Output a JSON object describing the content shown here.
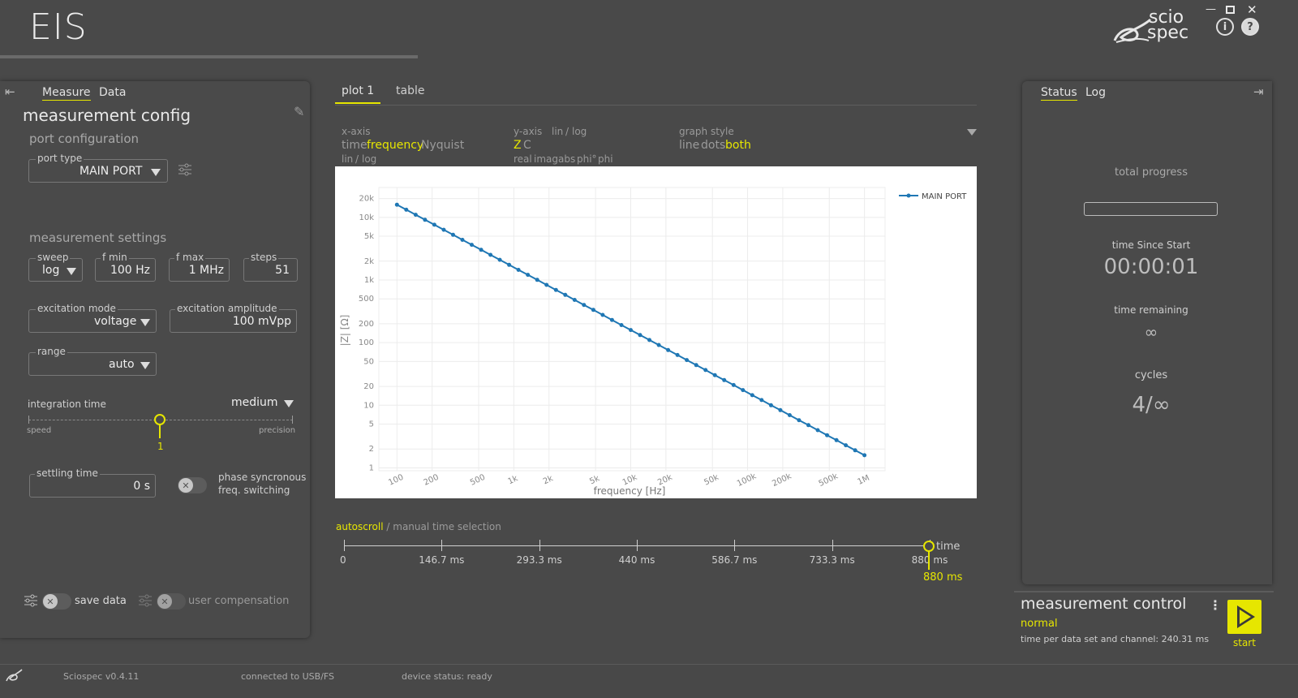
{
  "app": {
    "title": "EIS"
  },
  "left": {
    "tabs": [
      "Measure",
      "Data"
    ],
    "title": "measurement config",
    "port_section": "port configuration",
    "port_type": {
      "label": "port type",
      "value": "MAIN PORT"
    },
    "settings_section": "measurement settings",
    "sweep": {
      "label": "sweep",
      "value": "log"
    },
    "fmin": {
      "label": "f min",
      "value": "100 Hz"
    },
    "fmax": {
      "label": "f max",
      "value": "1 MHz"
    },
    "steps": {
      "label": "steps",
      "value": "51"
    },
    "exc_mode": {
      "label": "excitation mode",
      "value": "voltage"
    },
    "exc_amp": {
      "label": "excitation amplitude",
      "value": "100 mVpp"
    },
    "range": {
      "label": "range",
      "value": "auto"
    },
    "integration": {
      "label": "integration time",
      "value": "medium",
      "left": "speed",
      "right": "precision",
      "slider_value": "1",
      "slider_fraction": 0.5
    },
    "settling": {
      "label": "settling time",
      "value": "0 s"
    },
    "phase_sync": {
      "line1": "phase syncronous",
      "line2": "freq. switching"
    },
    "save_data": "save data",
    "user_comp": "user compensation"
  },
  "plot": {
    "tabs": [
      "plot 1",
      "table"
    ],
    "xaxis": {
      "heading": "x-axis",
      "opts": [
        "time",
        "frequency",
        "Nyquist"
      ],
      "scale": [
        "lin",
        "/",
        "log"
      ]
    },
    "yaxis": {
      "heading": "y-axis",
      "scale": [
        "lin",
        "/",
        "log"
      ],
      "opts": [
        "Z",
        "C"
      ],
      "sub": [
        "real",
        "imag",
        "abs",
        "phi°",
        "phi"
      ]
    },
    "graph_style": {
      "heading": "graph style",
      "opts": [
        "line",
        "dots",
        "both"
      ]
    },
    "timeline": {
      "mode_active": "autoscroll",
      "mode_sep": "/",
      "mode_inactive": "manual time selection",
      "ticks": [
        "0",
        "146.7 ms",
        "293.3 ms",
        "440 ms",
        "586.7 ms",
        "733.3 ms",
        "880 ms"
      ],
      "axis_label": "time",
      "current": "880 ms"
    }
  },
  "chart_data": {
    "type": "line",
    "x": [
      100,
      120.2,
      144.5,
      173.8,
      208.9,
      251.2,
      302,
      363.1,
      436.5,
      524.8,
      631,
      758.6,
      912,
      1096,
      1318,
      1585,
      1905,
      2291,
      2754,
      3311,
      3981,
      4786,
      5754,
      6918,
      8318,
      10000,
      12023,
      14454,
      17378,
      20893,
      25119,
      30200,
      36308,
      43652,
      52481,
      63096,
      75858,
      91201,
      109648,
      131826,
      158489,
      190546,
      229087,
      275423,
      331131,
      398107,
      478630,
      575440,
      691831,
      831764,
      1000000
    ],
    "series": [
      {
        "name": "MAIN PORT",
        "values": [
          15915,
          13239,
          11014,
          9160,
          7619,
          6336,
          5270,
          4383,
          3646,
          3033,
          2522,
          2098,
          1745,
          1452,
          1208,
          1004,
          835,
          695,
          578,
          481,
          400,
          333,
          277,
          230,
          191,
          159,
          132,
          110,
          91.6,
          76.2,
          63.4,
          52.7,
          43.8,
          36.5,
          30.3,
          25.2,
          21,
          17.5,
          14.5,
          12.1,
          10,
          8.35,
          6.95,
          5.78,
          4.81,
          4,
          3.33,
          2.77,
          2.3,
          1.91,
          1.59
        ]
      }
    ],
    "xlabel": "frequency [Hz]",
    "ylabel": "|Z| [Ω]",
    "xscale": "log",
    "yscale": "log",
    "xlim": [
      70,
      1500000
    ],
    "ylim": [
      0.9,
      30000
    ],
    "xticks": [
      {
        "v": 100,
        "t": "100"
      },
      {
        "v": 200,
        "t": "200"
      },
      {
        "v": 500,
        "t": "500"
      },
      {
        "v": 1000,
        "t": "1k"
      },
      {
        "v": 2000,
        "t": "2k"
      },
      {
        "v": 5000,
        "t": "5k"
      },
      {
        "v": 10000,
        "t": "10k"
      },
      {
        "v": 20000,
        "t": "20k"
      },
      {
        "v": 50000,
        "t": "50k"
      },
      {
        "v": 100000,
        "t": "100k"
      },
      {
        "v": 200000,
        "t": "200k"
      },
      {
        "v": 500000,
        "t": "500k"
      },
      {
        "v": 1000000,
        "t": "1M"
      }
    ],
    "yticks": [
      {
        "v": 1,
        "t": "1"
      },
      {
        "v": 2,
        "t": "2"
      },
      {
        "v": 5,
        "t": "5"
      },
      {
        "v": 10,
        "t": "10"
      },
      {
        "v": 20,
        "t": "20"
      },
      {
        "v": 50,
        "t": "50"
      },
      {
        "v": 100,
        "t": "100"
      },
      {
        "v": 200,
        "t": "200"
      },
      {
        "v": 500,
        "t": "500"
      },
      {
        "v": 1000,
        "t": "1k"
      },
      {
        "v": 2000,
        "t": "2k"
      },
      {
        "v": 5000,
        "t": "5k"
      },
      {
        "v": 10000,
        "t": "10k"
      },
      {
        "v": 20000,
        "t": "20k"
      }
    ],
    "grid": true,
    "legend": "top-right",
    "color": "#1f77b4"
  },
  "status": {
    "tabs": [
      "Status",
      "Log"
    ],
    "total_progress": "total progress",
    "progress_fraction": 0,
    "time_since_label": "time Since Start",
    "time_since": "00:00:01",
    "remaining_label": "time remaining",
    "remaining": "∞",
    "cycles_label": "cycles",
    "cycles": "4/∞"
  },
  "control": {
    "title": "measurement control",
    "mode": "normal",
    "info": "time per data set and channel: 240.31 ms",
    "start": "start"
  },
  "statusbar": {
    "version": "Sciospec v0.4.11",
    "connection": "connected to USB/FS",
    "device": "device status: ready"
  },
  "logo": {
    "line1": "scio",
    "line2": "spec"
  },
  "colors": {
    "accent": "#e6e600",
    "background": "#494949",
    "plot_line": "#1f77b4"
  }
}
